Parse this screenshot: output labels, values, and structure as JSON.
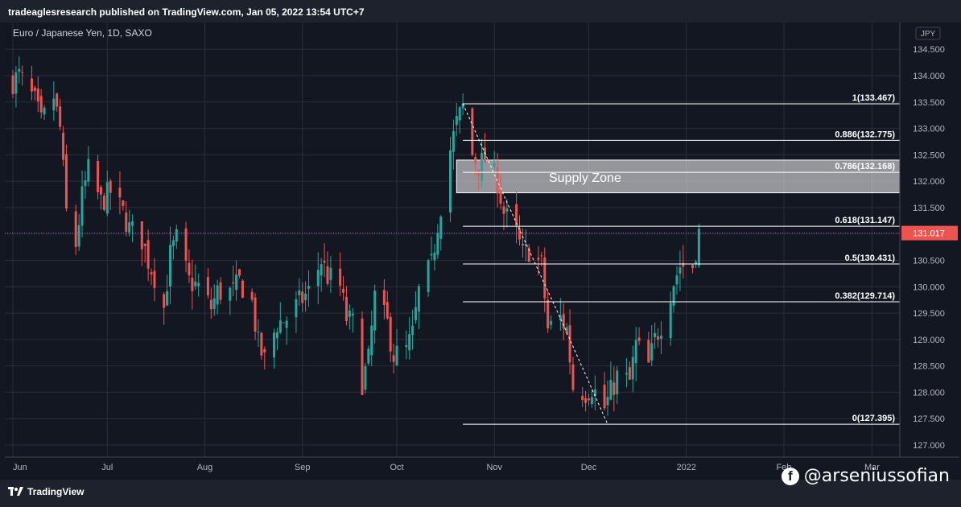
{
  "header": {
    "published": "tradeaglesresearch published on TradingView.com, Jan 05, 2022 13:54 UTC+7"
  },
  "footer": {
    "logo_text": "TradingView",
    "author_handle": "@arseniussofian",
    "author_icon": "facebook-icon"
  },
  "colors": {
    "background": "#131722",
    "up": "#26a69a",
    "down": "#ef5350",
    "grid": "#2a2e39",
    "axis_text": "#b2b5be",
    "current_price": "#ef5350",
    "fib_line": "#ffffff",
    "zone_fill": "rgba(255,255,255,0.55)"
  },
  "chart_data": {
    "type": "candlestick",
    "title": "Euro / Japanese Yen, 1D, SAXO",
    "currency": "JPY",
    "ylim": [
      126.8,
      134.7
    ],
    "y_ticks": [
      "127.000",
      "127.500",
      "128.000",
      "128.500",
      "129.000",
      "129.500",
      "130.000",
      "130.500",
      "131.000",
      "131.500",
      "132.000",
      "132.500",
      "133.000",
      "133.500",
      "134.000",
      "134.500"
    ],
    "x_labels": [
      "Jun",
      "Jul",
      "Aug",
      "Sep",
      "Oct",
      "Nov",
      "Dec",
      "2022",
      "Feb",
      "Mar"
    ],
    "current_price": {
      "label": "131.017",
      "value": 131.017
    },
    "supply_zone": {
      "label": "Supply Zone",
      "top": 132.4,
      "bottom": 131.78
    },
    "fib_levels": [
      {
        "label": "1(133.467)",
        "value": 133.467
      },
      {
        "label": "0.886(132.775)",
        "value": 132.775
      },
      {
        "label": "0.786(132.168)",
        "value": 132.168
      },
      {
        "label": "0.618(131.147)",
        "value": 131.147
      },
      {
        "label": "0.5(130.431)",
        "value": 130.431
      },
      {
        "label": "0.382(129.714)",
        "value": 129.714
      },
      {
        "label": "0(127.395)",
        "value": 127.395
      }
    ],
    "close_path": [
      [
        "2021-06-01",
        133.9
      ],
      [
        "2021-06-03",
        134.0
      ],
      [
        "2021-06-08",
        133.5
      ],
      [
        "2021-06-10",
        133.1
      ],
      [
        "2021-06-14",
        133.6
      ],
      [
        "2021-06-16",
        133.0
      ],
      [
        "2021-06-18",
        131.4
      ],
      [
        "2021-06-21",
        130.8
      ],
      [
        "2021-06-23",
        131.7
      ],
      [
        "2021-06-25",
        132.2
      ],
      [
        "2021-06-29",
        131.6
      ],
      [
        "2021-07-02",
        131.8
      ],
      [
        "2021-07-06",
        131.4
      ],
      [
        "2021-07-08",
        131.1
      ],
      [
        "2021-07-12",
        130.9
      ],
      [
        "2021-07-14",
        130.5
      ],
      [
        "2021-07-16",
        130.2
      ],
      [
        "2021-07-19",
        129.6
      ],
      [
        "2021-07-21",
        130.6
      ],
      [
        "2021-07-23",
        130.9
      ],
      [
        "2021-07-27",
        130.1
      ],
      [
        "2021-07-30",
        130.0
      ],
      [
        "2021-08-03",
        129.6
      ],
      [
        "2021-08-05",
        129.9
      ],
      [
        "2021-08-10",
        129.9
      ],
      [
        "2021-08-12",
        130.1
      ],
      [
        "2021-08-16",
        129.7
      ],
      [
        "2021-08-18",
        128.9
      ],
      [
        "2021-08-20",
        128.6
      ],
      [
        "2021-08-24",
        129.3
      ],
      [
        "2021-08-27",
        129.4
      ],
      [
        "2021-08-31",
        129.7
      ],
      [
        "2021-09-03",
        129.9
      ],
      [
        "2021-09-07",
        130.5
      ],
      [
        "2021-09-09",
        130.2
      ],
      [
        "2021-09-13",
        130.0
      ],
      [
        "2021-09-15",
        129.4
      ],
      [
        "2021-09-17",
        129.3
      ],
      [
        "2021-09-20",
        128.2
      ],
      [
        "2021-09-22",
        128.6
      ],
      [
        "2021-09-24",
        129.8
      ],
      [
        "2021-09-28",
        129.3
      ],
      [
        "2021-09-30",
        128.7
      ],
      [
        "2021-10-04",
        128.8
      ],
      [
        "2021-10-06",
        129.1
      ],
      [
        "2021-10-08",
        129.9
      ],
      [
        "2021-10-12",
        130.4
      ],
      [
        "2021-10-14",
        131.2
      ],
      [
        "2021-10-18",
        132.6
      ],
      [
        "2021-10-20",
        133.1
      ],
      [
        "2021-10-22",
        133.4
      ],
      [
        "2021-10-25",
        132.5
      ],
      [
        "2021-10-27",
        132.3
      ],
      [
        "2021-10-29",
        132.4
      ],
      [
        "2021-11-02",
        132.0
      ],
      [
        "2021-11-04",
        131.4
      ],
      [
        "2021-11-08",
        131.0
      ],
      [
        "2021-11-10",
        130.6
      ],
      [
        "2021-11-12",
        130.7
      ],
      [
        "2021-11-16",
        130.4
      ],
      [
        "2021-11-18",
        129.2
      ],
      [
        "2021-11-22",
        129.4
      ],
      [
        "2021-11-24",
        129.2
      ],
      [
        "2021-11-26",
        128.1
      ],
      [
        "2021-11-30",
        128.0
      ],
      [
        "2021-12-02",
        128.1
      ],
      [
        "2021-12-06",
        127.7
      ],
      [
        "2021-12-08",
        128.0
      ],
      [
        "2021-12-10",
        128.3
      ],
      [
        "2021-12-14",
        128.2
      ],
      [
        "2021-12-16",
        128.9
      ],
      [
        "2021-12-20",
        128.5
      ],
      [
        "2021-12-22",
        129.0
      ],
      [
        "2021-12-24",
        129.3
      ],
      [
        "2021-12-28",
        130.1
      ],
      [
        "2021-12-30",
        130.4
      ],
      [
        "2022-01-03",
        130.4
      ],
      [
        "2022-01-05",
        131.017
      ]
    ]
  }
}
